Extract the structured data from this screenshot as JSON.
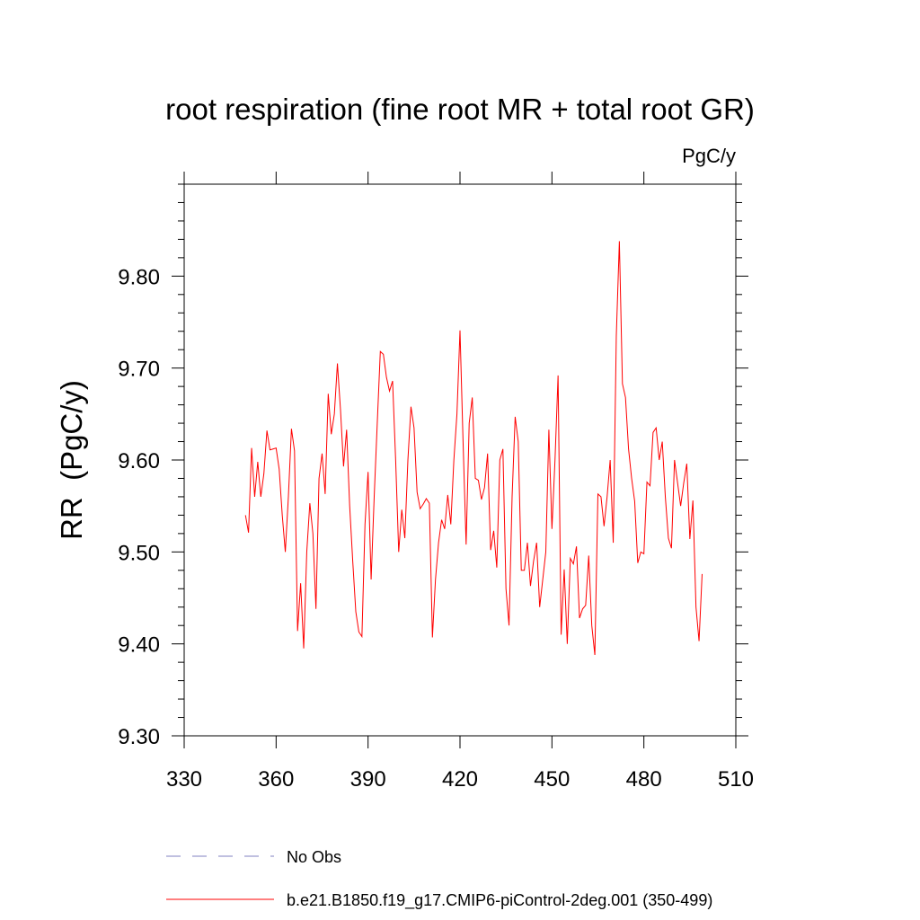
{
  "chart_data": {
    "type": "line",
    "title": "root respiration (fine root MR + total root GR)",
    "units": "PgC/y",
    "ylabel": "RR  (PgC/y)",
    "xlabel": "",
    "xlim": [
      330,
      510
    ],
    "ylim": [
      9.3,
      9.9
    ],
    "xticks": [
      330,
      360,
      390,
      420,
      450,
      480,
      510
    ],
    "yticks": [
      9.3,
      9.4,
      9.5,
      9.6,
      9.7,
      9.8
    ],
    "xtick_labels": [
      "330",
      "360",
      "390",
      "420",
      "450",
      "480",
      "510"
    ],
    "ytick_labels": [
      "9.30",
      "9.40",
      "9.50",
      "9.60",
      "9.70",
      "9.80"
    ],
    "legend": [
      {
        "label": "No Obs",
        "style": "dashed",
        "color": "#8080c0"
      },
      {
        "label": "b.e21.B1850.f19_g17.CMIP6-piControl-2deg.001 (350-499)",
        "style": "solid",
        "color": "#ff0000"
      }
    ],
    "series": [
      {
        "name": "b.e21.B1850.f19_g17.CMIP6-piControl-2deg.001 (350-499)",
        "color": "#ff0000",
        "x": [
          350,
          351,
          352,
          353,
          354,
          355,
          356,
          357,
          358,
          359,
          360,
          361,
          362,
          363,
          364,
          365,
          366,
          367,
          368,
          369,
          370,
          371,
          372,
          373,
          374,
          375,
          376,
          377,
          378,
          379,
          380,
          381,
          382,
          383,
          384,
          385,
          386,
          387,
          388,
          389,
          390,
          391,
          392,
          393,
          394,
          395,
          396,
          397,
          398,
          399,
          400,
          401,
          402,
          403,
          404,
          405,
          406,
          407,
          408,
          409,
          410,
          411,
          412,
          413,
          414,
          415,
          416,
          417,
          418,
          419,
          420,
          421,
          422,
          423,
          424,
          425,
          426,
          427,
          428,
          429,
          430,
          431,
          432,
          433,
          434,
          435,
          436,
          437,
          438,
          439,
          440,
          441,
          442,
          443,
          444,
          445,
          446,
          447,
          448,
          449,
          450,
          451,
          452,
          453,
          454,
          455,
          456,
          457,
          458,
          459,
          460,
          461,
          462,
          463,
          464,
          465,
          466,
          467,
          468,
          469,
          470,
          471,
          472,
          473,
          474,
          475,
          476,
          477,
          478,
          479,
          480,
          481,
          482,
          483,
          484,
          485,
          486,
          487,
          488,
          489,
          490,
          491,
          492,
          493,
          494,
          495,
          496,
          497,
          498,
          499
        ],
        "values": [
          9.54,
          9.521,
          9.613,
          9.56,
          9.598,
          9.56,
          9.585,
          9.632,
          9.611,
          9.612,
          9.613,
          9.59,
          9.54,
          9.5,
          9.56,
          9.634,
          9.61,
          9.414,
          9.466,
          9.395,
          9.5,
          9.553,
          9.52,
          9.438,
          9.58,
          9.607,
          9.563,
          9.672,
          9.628,
          9.65,
          9.705,
          9.655,
          9.593,
          9.633,
          9.55,
          9.49,
          9.435,
          9.413,
          9.408,
          9.53,
          9.587,
          9.47,
          9.56,
          9.64,
          9.718,
          9.715,
          9.69,
          9.675,
          9.686,
          9.6,
          9.5,
          9.546,
          9.515,
          9.6,
          9.658,
          9.635,
          9.565,
          9.547,
          9.552,
          9.558,
          9.553,
          9.407,
          9.47,
          9.51,
          9.535,
          9.525,
          9.562,
          9.53,
          9.6,
          9.65,
          9.741,
          9.62,
          9.508,
          9.64,
          9.668,
          9.58,
          9.578,
          9.557,
          9.57,
          9.607,
          9.502,
          9.523,
          9.483,
          9.6,
          9.612,
          9.46,
          9.42,
          9.56,
          9.647,
          9.62,
          9.48,
          9.48,
          9.51,
          9.463,
          9.49,
          9.51,
          9.44,
          9.47,
          9.5,
          9.633,
          9.525,
          9.6,
          9.692,
          9.41,
          9.481,
          9.4,
          9.493,
          9.487,
          9.506,
          9.428,
          9.438,
          9.442,
          9.496,
          9.42,
          9.388,
          9.563,
          9.56,
          9.528,
          9.56,
          9.6,
          9.51,
          9.735,
          9.838,
          9.683,
          9.668,
          9.612,
          9.58,
          9.555,
          9.488,
          9.5,
          9.498,
          9.576,
          9.572,
          9.63,
          9.635,
          9.6,
          9.62,
          9.56,
          9.515,
          9.504,
          9.6,
          9.575,
          9.55,
          9.575,
          9.596,
          9.514,
          9.556,
          9.44,
          9.403,
          9.476
        ]
      }
    ]
  }
}
